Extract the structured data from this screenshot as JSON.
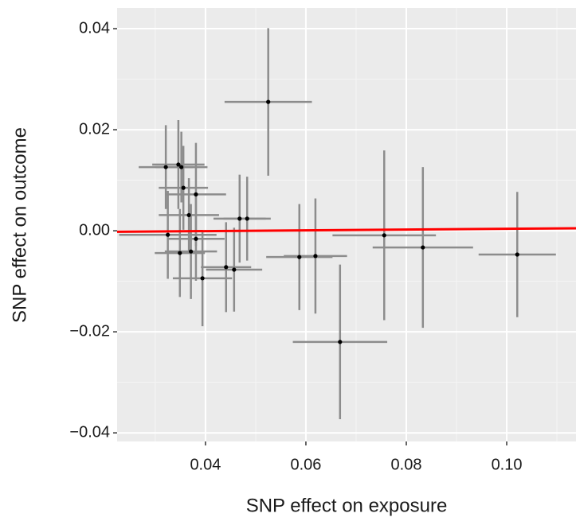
{
  "chart_data": {
    "type": "scatter",
    "x_label": "SNP effect on exposure",
    "y_label": "SNP effect on outcome",
    "x": [
      0.0525,
      0.0321,
      0.0346,
      0.0352,
      0.0356,
      0.0381,
      0.0367,
      0.0468,
      0.0483,
      0.0325,
      0.0381,
      0.0349,
      0.0371,
      0.0394,
      0.0441,
      0.0457,
      0.0587,
      0.0619,
      0.0668,
      0.0756,
      0.0833,
      0.1021
    ],
    "values": [
      0.0255,
      0.0126,
      0.0131,
      0.0126,
      0.0085,
      0.0072,
      0.0031,
      0.0024,
      0.0024,
      -0.0008,
      -0.0016,
      -0.0044,
      -0.0041,
      -0.0094,
      -0.0072,
      -0.0077,
      -0.0052,
      -0.005,
      -0.022,
      -0.0009,
      -0.0033,
      -0.0047
    ],
    "x_err": [
      0.0087,
      0.0054,
      0.0052,
      0.0052,
      0.0049,
      0.006,
      0.006,
      0.0052,
      0.0047,
      0.0097,
      0.0057,
      0.005,
      0.0052,
      0.0059,
      0.005,
      0.0056,
      0.0066,
      0.0063,
      0.0094,
      0.0103,
      0.01,
      0.0077
    ],
    "y_err": [
      0.0146,
      0.0083,
      0.0088,
      0.007,
      0.0083,
      0.0102,
      0.0073,
      0.0087,
      0.0083,
      0.0087,
      0.0083,
      0.0087,
      0.0094,
      0.0095,
      0.0089,
      0.0083,
      0.0105,
      0.0114,
      0.0153,
      0.0168,
      0.0159,
      0.0124
    ],
    "point_color": "#000000",
    "errorbar_color": "#8c8c8c",
    "line": {
      "color": "#ff0000",
      "x": [
        0.0224,
        0.1138
      ],
      "y": [
        -0.0002,
        0.0005
      ]
    },
    "xlim": [
      0.0224,
      0.1138
    ],
    "ylim": [
      -0.0417,
      0.0441
    ],
    "xticks": [
      0.04,
      0.06,
      0.08,
      {
        "value": 0.1,
        "label": "0.10"
      }
    ],
    "yticks": [
      {
        "value": -0.04,
        "label": "−0.04"
      },
      {
        "value": -0.02,
        "label": "−0.02"
      },
      {
        "value": 0,
        "label": "0.00"
      },
      0.02,
      0.04
    ],
    "minor_xticks": [
      0.03,
      0.05,
      0.07,
      0.09,
      0.11
    ],
    "minor_yticks": [
      -0.03,
      -0.01,
      0.01,
      0.03
    ],
    "grid": true
  }
}
